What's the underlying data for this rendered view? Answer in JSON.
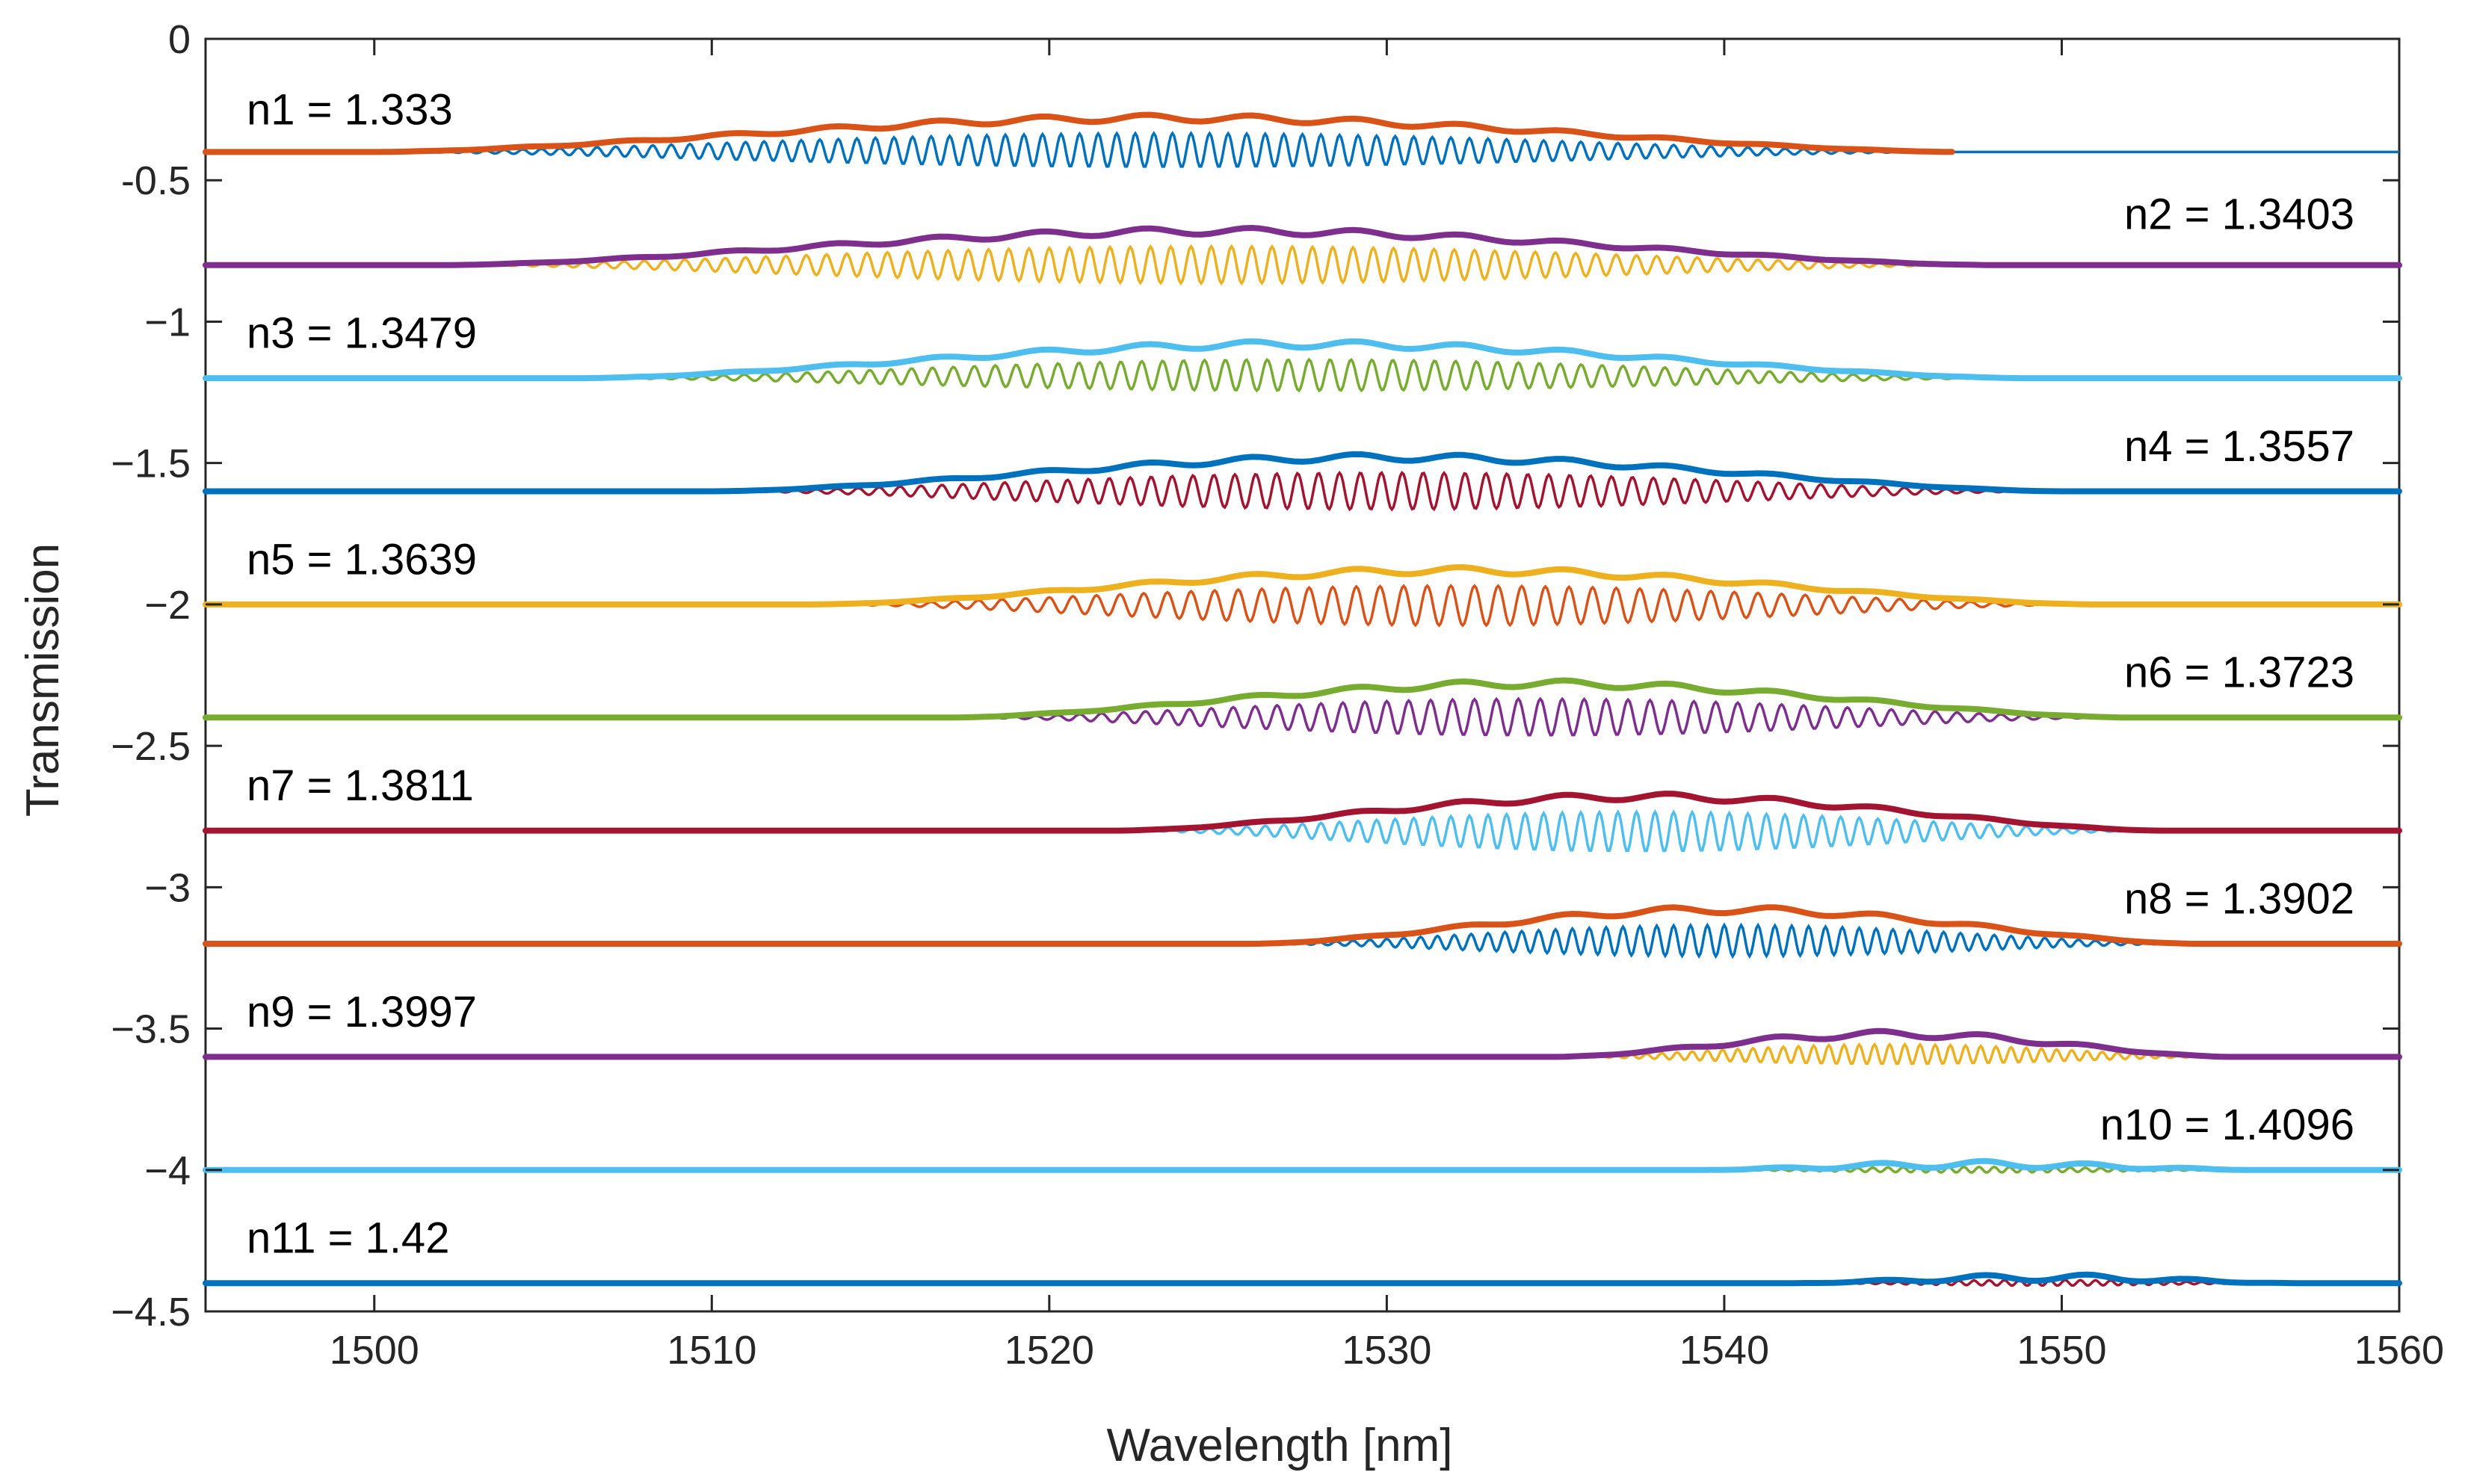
{
  "chart_data": {
    "type": "line",
    "title": "",
    "xlabel": "Wavelength [nm]",
    "ylabel": "Transmission",
    "xlim": [
      1495,
      1560
    ],
    "ylim": [
      -4.5,
      0
    ],
    "xticks": [
      1500,
      1510,
      1520,
      1530,
      1540,
      1550,
      1560
    ],
    "xtick_labels": [
      "1500",
      "1510",
      "1520",
      "1530",
      "1540",
      "1550",
      "1560"
    ],
    "yticks": [
      0,
      -0.5,
      -1,
      -1.5,
      -2,
      -2.5,
      -3,
      -3.5,
      -4,
      -4.5
    ],
    "ytick_labels": [
      "0",
      "-0.5",
      "−1",
      "−1.5",
      "−2",
      "−2.5",
      "−3",
      "−3.5",
      "−4",
      "−4.5"
    ],
    "grid": false,
    "series": [
      {
        "name": "n1 = 1.333",
        "baseline": -0.4,
        "envelope_color": "#D95319",
        "spectrum_color": "#0072BD",
        "band_start": 1500,
        "band_end": 1547,
        "max_depth": 0.12,
        "peak_rise": 0.12,
        "period": 0.55,
        "label_side": "left",
        "label_y": -0.25
      },
      {
        "name": "n2 = 1.3403",
        "baseline": -0.8,
        "envelope_color": "#7E2F8E",
        "spectrum_color": "#EDB120",
        "band_start": 1502,
        "band_end": 1548,
        "max_depth": 0.13,
        "peak_rise": 0.12,
        "period": 0.6,
        "label_side": "right",
        "label_y": -0.62
      },
      {
        "name": "n3 = 1.3479",
        "baseline": -1.2,
        "envelope_color": "#4DBEEE",
        "spectrum_color": "#77AC30",
        "band_start": 1506,
        "band_end": 1549,
        "max_depth": 0.11,
        "peak_rise": 0.12,
        "period": 0.62,
        "label_side": "left",
        "label_y": -1.04
      },
      {
        "name": "n4 = 1.3557",
        "baseline": -1.6,
        "envelope_color": "#0072BD",
        "spectrum_color": "#A2142F",
        "band_start": 1510,
        "band_end": 1550,
        "max_depth": 0.13,
        "peak_rise": 0.12,
        "period": 0.62,
        "label_side": "right",
        "label_y": -1.44
      },
      {
        "name": "n5 = 1.3639",
        "baseline": -2.0,
        "envelope_color": "#EDB120",
        "spectrum_color": "#D95319",
        "band_start": 1513,
        "band_end": 1551,
        "max_depth": 0.14,
        "peak_rise": 0.12,
        "period": 0.7,
        "label_side": "left",
        "label_y": -1.84
      },
      {
        "name": "n6 = 1.3723",
        "baseline": -2.4,
        "envelope_color": "#77AC30",
        "spectrum_color": "#7E2F8E",
        "band_start": 1517,
        "band_end": 1552,
        "max_depth": 0.13,
        "peak_rise": 0.12,
        "period": 0.65,
        "label_side": "right",
        "label_y": -2.24
      },
      {
        "name": "n7 = 1.3811",
        "baseline": -2.8,
        "envelope_color": "#A2142F",
        "spectrum_color": "#4DBEEE",
        "band_start": 1522,
        "band_end": 1553,
        "max_depth": 0.14,
        "peak_rise": 0.12,
        "period": 0.55,
        "label_side": "left",
        "label_y": -2.64
      },
      {
        "name": "n8 = 1.3902",
        "baseline": -3.2,
        "envelope_color": "#D95319",
        "spectrum_color": "#0072BD",
        "band_start": 1526,
        "band_end": 1554,
        "max_depth": 0.11,
        "peak_rise": 0.12,
        "period": 0.5,
        "label_side": "right",
        "label_y": -3.04
      },
      {
        "name": "n9 = 1.3997",
        "baseline": -3.6,
        "envelope_color": "#7E2F8E",
        "spectrum_color": "#EDB120",
        "band_start": 1535,
        "band_end": 1555,
        "max_depth": 0.07,
        "peak_rise": 0.08,
        "period": 0.45,
        "label_side": "left",
        "label_y": -3.44
      },
      {
        "name": "n10 = 1.4096",
        "baseline": -4.0,
        "envelope_color": "#4DBEEE",
        "spectrum_color": "#77AC30",
        "band_start": 1539,
        "band_end": 1556,
        "max_depth": 0.02,
        "peak_rise": 0.02,
        "period": 0.45,
        "label_side": "right",
        "label_y": -3.84
      },
      {
        "name": "n11 = 1.42",
        "baseline": -4.4,
        "envelope_color": "#0072BD",
        "spectrum_color": "#A2142F",
        "band_start": 1542,
        "band_end": 1557,
        "max_depth": 0.02,
        "peak_rise": 0.02,
        "period": 0.45,
        "label_side": "left",
        "label_y": -4.24
      }
    ]
  }
}
